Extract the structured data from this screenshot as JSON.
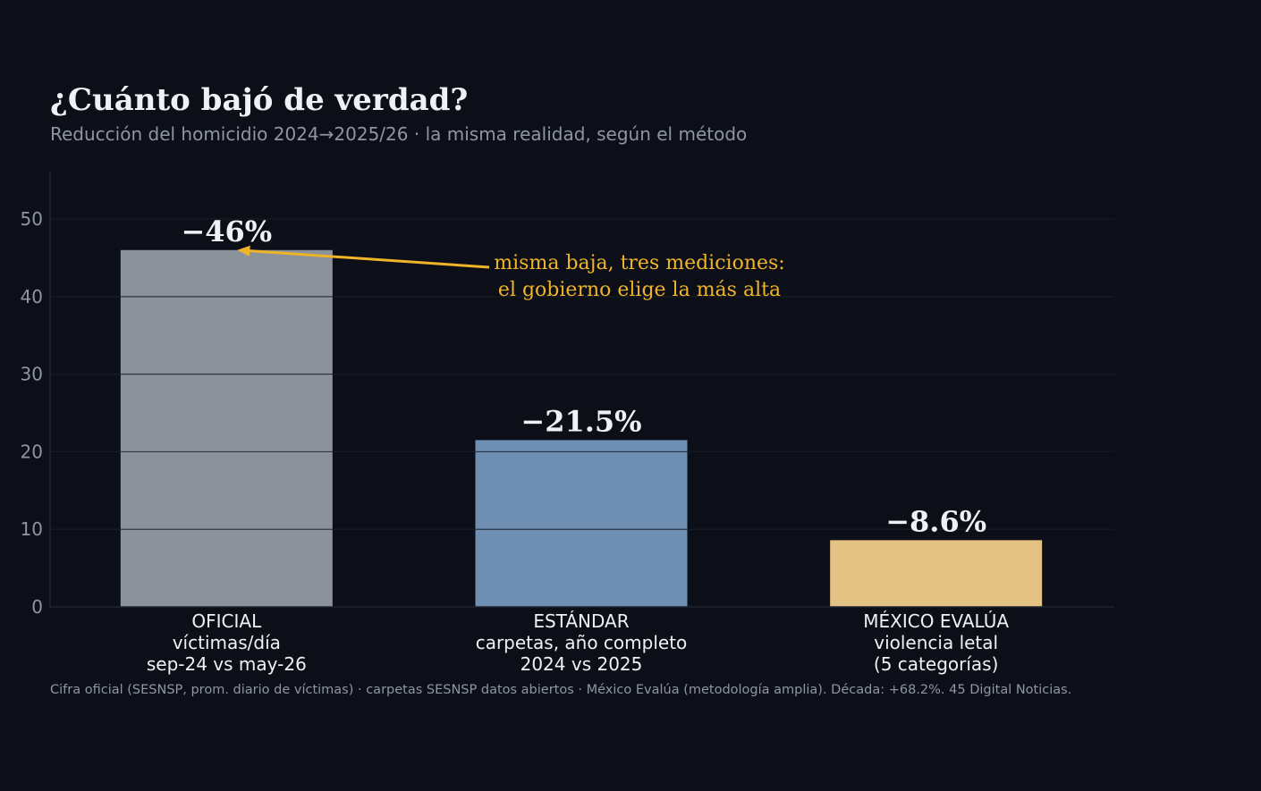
{
  "colors": {
    "background": "#0c0f17",
    "grid": "#1f2430",
    "overlay_grid": "#14181f",
    "text": "#eef1f8",
    "muted": "#8e96a3",
    "accent": "#f0b429"
  },
  "chart_data": {
    "type": "bar",
    "title": "¿Cuánto bajó de verdad?",
    "subtitle": "Reducción del homicidio 2024→2025/26 · la misma realidad, según el método",
    "xlabel": "",
    "ylabel": "",
    "ylim": [
      0,
      56
    ],
    "yticks": [
      0,
      10,
      20,
      30,
      40,
      50
    ],
    "grid": true,
    "categories": [
      [
        "OFICIAL",
        "víctimas/día",
        "sep-24 vs may-26"
      ],
      [
        "ESTÁNDAR",
        "carpetas, año completo",
        "2024 vs 2025"
      ],
      [
        "MÉXICO EVALÚA",
        "violencia letal",
        "(5 categorías)"
      ]
    ],
    "values": [
      46,
      21.5,
      8.6
    ],
    "value_labels": [
      "−46%",
      "−21.5%",
      "−8.6%"
    ],
    "bar_colors": [
      "#8b929c",
      "#6e8fb1",
      "#e4c283"
    ],
    "annotation": {
      "lines": [
        "misma baja, tres mediciones:",
        "el gobierno elige la más alta"
      ],
      "target_category": 0,
      "color": "#f0b429"
    },
    "footer": "Cifra oficial (SESNSP, prom. diario de víctimas) · carpetas SESNSP datos abiertos · México Evalúa (metodología amplia). Década: +68.2%. 45 Digital Noticias."
  }
}
